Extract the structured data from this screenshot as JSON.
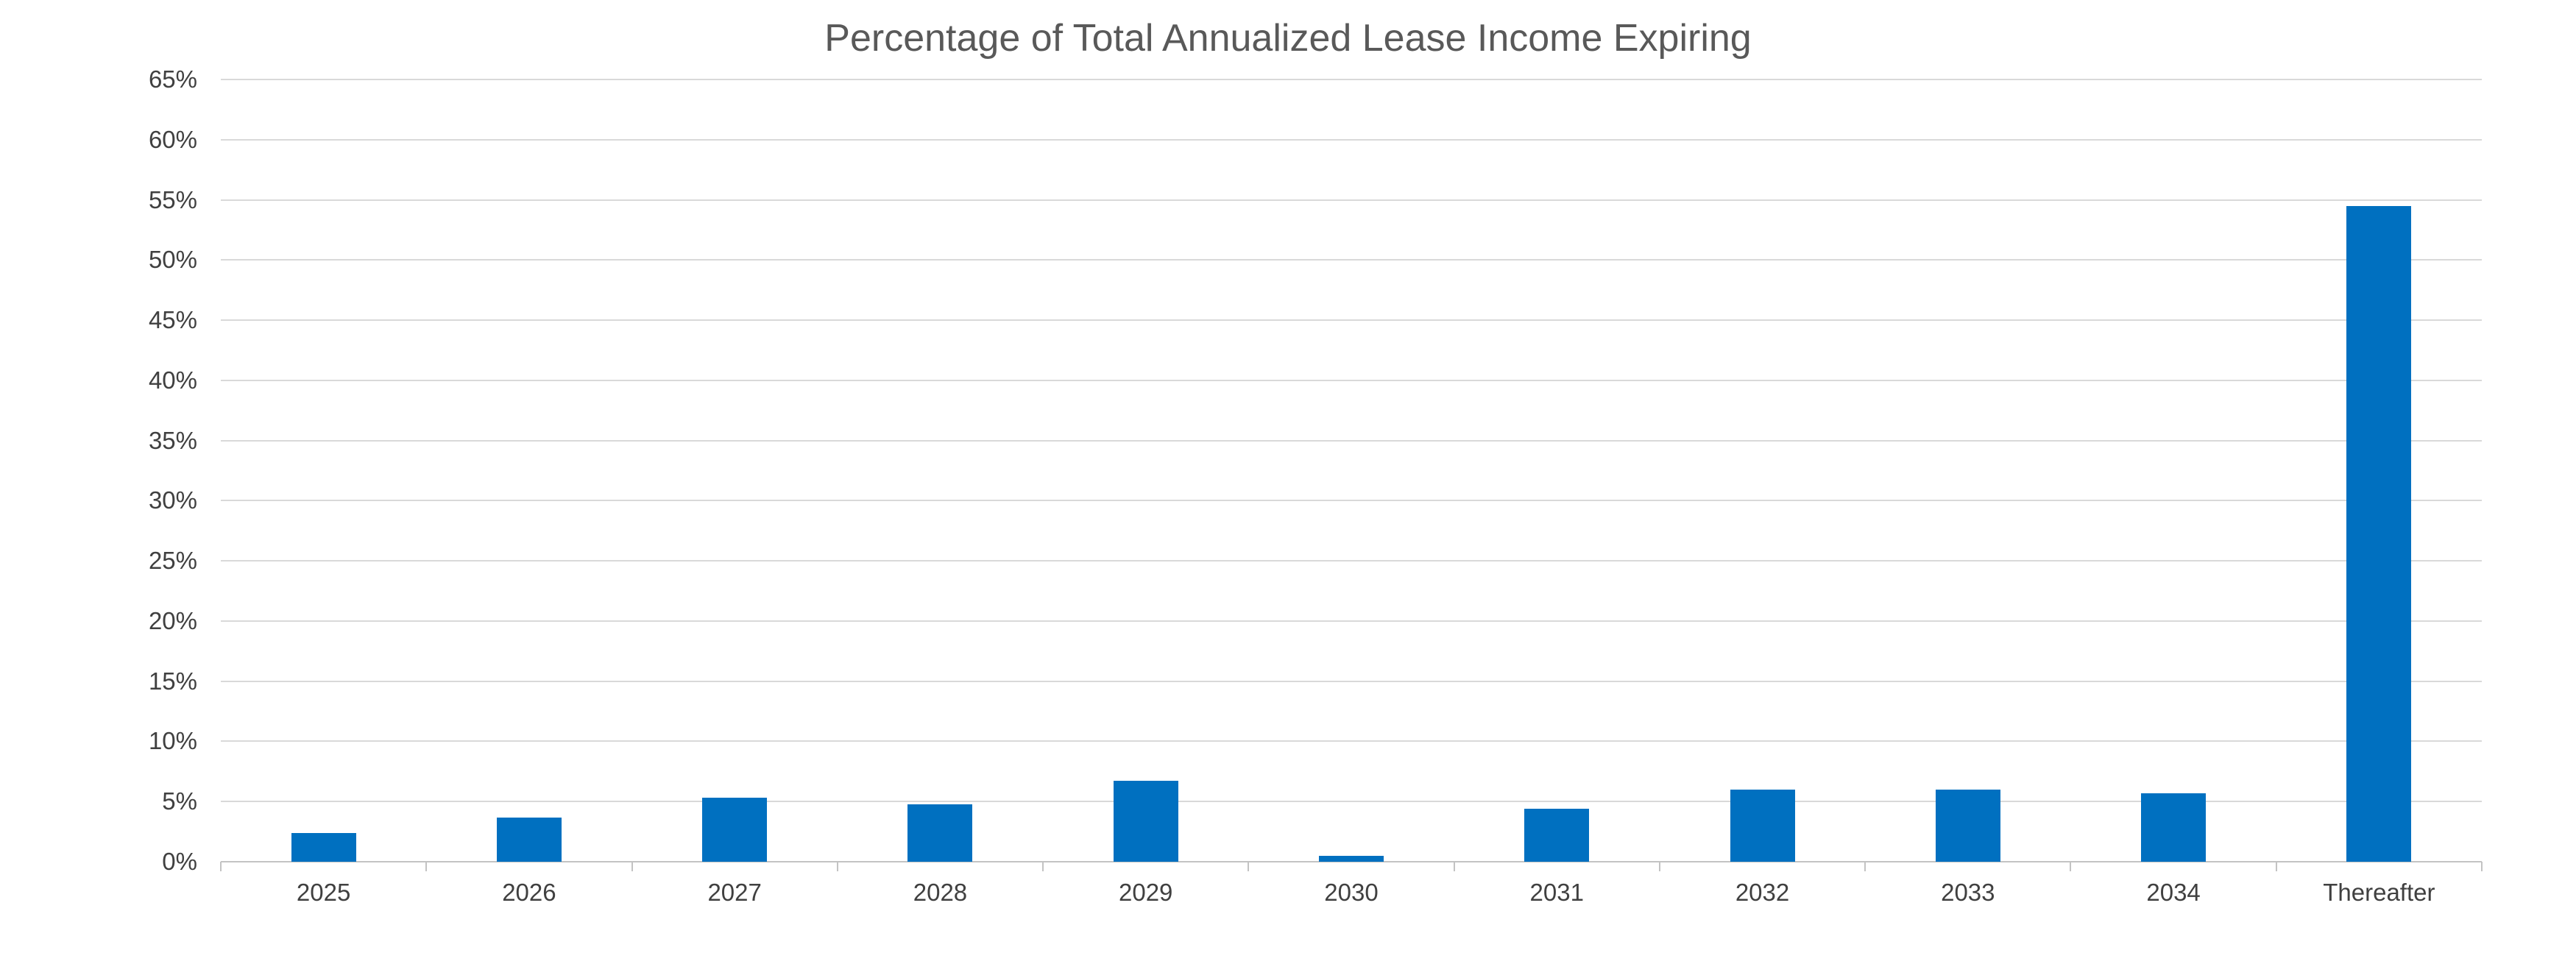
{
  "chart_data": {
    "type": "bar",
    "title": "Percentage of Total Annualized Lease Income Expiring",
    "categories": [
      "2025",
      "2026",
      "2027",
      "2028",
      "2029",
      "2030",
      "2031",
      "2032",
      "2033",
      "2034",
      "Thereafter"
    ],
    "values": [
      2.4,
      3.7,
      5.3,
      4.8,
      6.7,
      0.5,
      4.4,
      6.0,
      6.0,
      5.7,
      54.5
    ],
    "series_name": "Percentage of Total Annualized Lease Income Expiring",
    "xlabel": "",
    "ylabel": "",
    "ylim": [
      0,
      65
    ],
    "ytick_step": 5,
    "ytick_labels": [
      "0%",
      "5%",
      "10%",
      "15%",
      "20%",
      "25%",
      "30%",
      "35%",
      "40%",
      "45%",
      "50%",
      "55%",
      "60%",
      "65%"
    ],
    "grid": "horizontal-on",
    "legend": "none",
    "data_labels": "none",
    "colors": {
      "bar": "#0070C0",
      "gridline": "#D9D9D9",
      "axis_line": "#C3C3C3",
      "title_text": "#595959",
      "axis_label_text": "#404040",
      "background": "#FFFFFF"
    }
  }
}
